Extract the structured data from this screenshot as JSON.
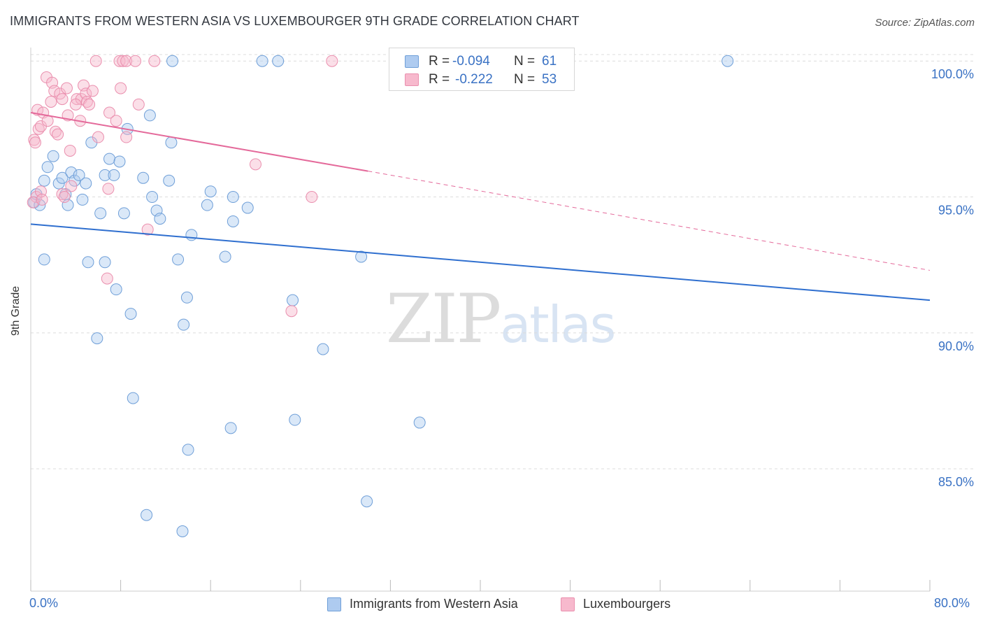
{
  "title": "IMMIGRANTS FROM WESTERN ASIA VS LUXEMBOURGER 9TH GRADE CORRELATION CHART",
  "source": "Source: ZipAtlas.com",
  "watermark": {
    "zip": "ZIP",
    "atlas": "atlas"
  },
  "legend": {
    "series1": {
      "r_label": "R =",
      "r_value": "-0.094",
      "n_label": "N =",
      "n_value": "61"
    },
    "series2": {
      "r_label": "R =",
      "r_value": "-0.222",
      "n_label": "N =",
      "n_value": "53"
    }
  },
  "colors": {
    "blue_fill": "#aecbf0",
    "blue_stroke": "#6f9fd8",
    "blue_line": "#2f6fcf",
    "pink_fill": "#f7b9cd",
    "pink_stroke": "#ea8fae",
    "pink_line": "#e4699a",
    "grid": "#dcdcdc",
    "tick_text": "#3a72c4"
  },
  "chart_data": {
    "type": "scatter",
    "title": "IMMIGRANTS FROM WESTERN ASIA VS LUXEMBOURGER 9TH GRADE CORRELATION CHART",
    "xlabel": "",
    "ylabel": "9th Grade",
    "xlim": [
      0,
      80
    ],
    "ylim": [
      80.5,
      100.7
    ],
    "x_tick_labels": [
      "0.0%",
      "80.0%"
    ],
    "y_ticks": [
      85,
      90,
      95,
      100
    ],
    "y_tick_labels": [
      "85.0%",
      "90.0%",
      "95.0%",
      "100.0%"
    ],
    "series": [
      {
        "name": "Immigrants from Western Asia",
        "color": "blue",
        "trend": {
          "x": [
            0,
            80
          ],
          "y": [
            94.0,
            91.2
          ]
        },
        "points": [
          [
            0.3,
            94.8
          ],
          [
            0.5,
            95.1
          ],
          [
            0.8,
            94.7
          ],
          [
            1.2,
            95.6
          ],
          [
            1.5,
            96.1
          ],
          [
            2.0,
            96.5
          ],
          [
            2.5,
            95.5
          ],
          [
            2.8,
            95.7
          ],
          [
            3.1,
            95.1
          ],
          [
            3.3,
            94.7
          ],
          [
            3.6,
            95.9
          ],
          [
            3.9,
            95.6
          ],
          [
            4.3,
            95.8
          ],
          [
            4.6,
            94.9
          ],
          [
            4.9,
            95.5
          ],
          [
            5.4,
            97.0
          ],
          [
            6.2,
            94.4
          ],
          [
            6.6,
            95.8
          ],
          [
            7.0,
            96.4
          ],
          [
            7.4,
            95.8
          ],
          [
            7.9,
            96.3
          ],
          [
            8.3,
            94.4
          ],
          [
            8.6,
            97.5
          ],
          [
            10.0,
            95.7
          ],
          [
            10.6,
            98.0
          ],
          [
            10.8,
            95.0
          ],
          [
            11.2,
            94.5
          ],
          [
            11.5,
            94.2
          ],
          [
            12.3,
            95.6
          ],
          [
            12.5,
            97.0
          ],
          [
            12.6,
            100.0
          ],
          [
            14.3,
            93.6
          ],
          [
            15.7,
            94.7
          ],
          [
            16.0,
            95.2
          ],
          [
            18.0,
            95.0
          ],
          [
            19.3,
            94.6
          ],
          [
            20.6,
            100.0
          ],
          [
            22.0,
            100.0
          ],
          [
            62.0,
            100.0
          ],
          [
            1.2,
            92.7
          ],
          [
            5.1,
            92.6
          ],
          [
            6.6,
            92.6
          ],
          [
            7.6,
            91.6
          ],
          [
            8.9,
            90.7
          ],
          [
            13.1,
            92.7
          ],
          [
            13.9,
            91.3
          ],
          [
            13.6,
            90.3
          ],
          [
            17.3,
            92.8
          ],
          [
            18.0,
            94.1
          ],
          [
            23.3,
            91.2
          ],
          [
            26.0,
            89.4
          ],
          [
            29.4,
            92.8
          ],
          [
            5.9,
            89.8
          ],
          [
            9.1,
            87.6
          ],
          [
            17.8,
            86.5
          ],
          [
            14.0,
            85.7
          ],
          [
            23.5,
            86.8
          ],
          [
            34.6,
            86.7
          ],
          [
            10.3,
            83.3
          ],
          [
            13.5,
            82.7
          ],
          [
            29.9,
            83.8
          ]
        ]
      },
      {
        "name": "Luxembourgers",
        "color": "pink",
        "trend": {
          "x": [
            0,
            30
          ],
          "y": [
            98.1,
            95.95
          ]
        },
        "trend_ext": {
          "x": [
            30,
            80
          ],
          "y": [
            95.95,
            92.3
          ]
        },
        "points": [
          [
            0.3,
            97.1
          ],
          [
            0.4,
            97.0
          ],
          [
            0.6,
            98.2
          ],
          [
            0.7,
            97.5
          ],
          [
            0.9,
            97.6
          ],
          [
            1.1,
            98.1
          ],
          [
            1.4,
            99.4
          ],
          [
            1.5,
            97.8
          ],
          [
            1.8,
            98.5
          ],
          [
            1.9,
            99.2
          ],
          [
            2.1,
            98.9
          ],
          [
            2.2,
            97.4
          ],
          [
            2.4,
            97.3
          ],
          [
            2.6,
            98.8
          ],
          [
            2.8,
            98.6
          ],
          [
            3.2,
            99.0
          ],
          [
            3.3,
            98.0
          ],
          [
            3.5,
            96.7
          ],
          [
            3.6,
            95.4
          ],
          [
            4.1,
            98.6
          ],
          [
            4.4,
            97.8
          ],
          [
            4.5,
            98.6
          ],
          [
            4.7,
            99.1
          ],
          [
            4.9,
            98.8
          ],
          [
            5.0,
            98.5
          ],
          [
            5.2,
            98.4
          ],
          [
            6.0,
            97.2
          ],
          [
            7.0,
            98.1
          ],
          [
            7.6,
            97.8
          ],
          [
            8.0,
            99.0
          ],
          [
            8.5,
            97.2
          ],
          [
            9.6,
            98.4
          ],
          [
            10.4,
            93.8
          ],
          [
            11.0,
            100.0
          ],
          [
            5.8,
            100.0
          ],
          [
            7.9,
            100.0
          ],
          [
            8.2,
            100.0
          ],
          [
            8.5,
            100.0
          ],
          [
            9.3,
            100.0
          ],
          [
            26.8,
            100.0
          ],
          [
            20.0,
            96.2
          ],
          [
            25.0,
            95.0
          ],
          [
            0.5,
            95.0
          ],
          [
            0.9,
            95.2
          ],
          [
            2.8,
            95.1
          ],
          [
            6.9,
            95.3
          ],
          [
            6.8,
            92.0
          ],
          [
            23.2,
            90.8
          ],
          [
            0.2,
            94.8
          ],
          [
            1.0,
            94.9
          ],
          [
            3.0,
            95.0
          ],
          [
            4.0,
            98.4
          ],
          [
            5.5,
            98.9
          ]
        ]
      }
    ]
  },
  "bottom_legend": [
    "Immigrants from Western Asia",
    "Luxembourgers"
  ]
}
